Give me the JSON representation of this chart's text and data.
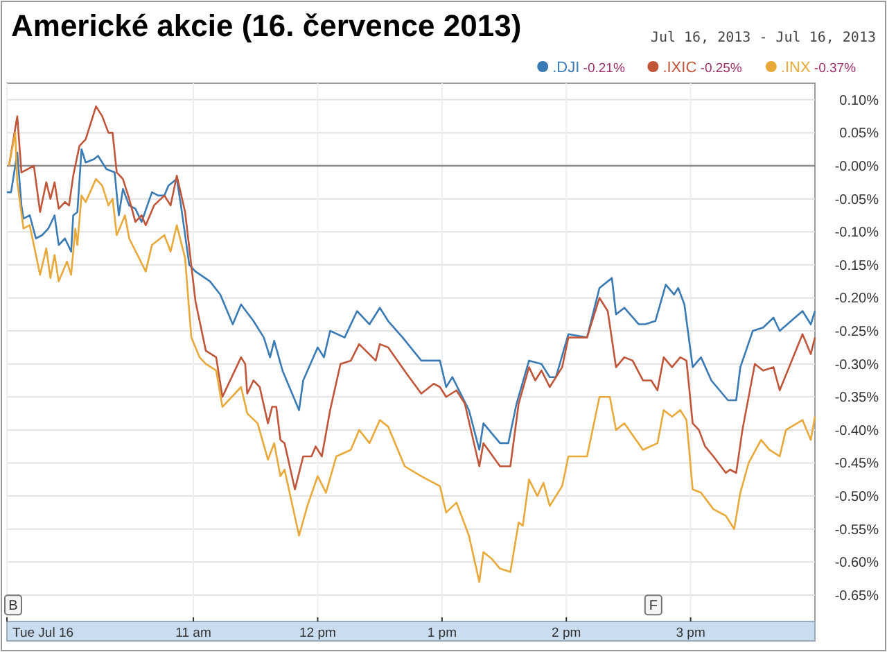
{
  "chart_data": {
    "type": "line",
    "title": "Americké akcie (16. července 2013)",
    "subtitle": "Jul 16, 2013  -  Jul 16, 2013",
    "xlim": [
      "2013-07-16T09:30",
      "2013-07-16T16:00"
    ],
    "xticks": [
      {
        "value": "2013-07-16T09:30",
        "label": "Tue Jul 16"
      },
      {
        "value": "2013-07-16T11:00",
        "label": "11 am"
      },
      {
        "value": "2013-07-16T12:00",
        "label": "12 pm"
      },
      {
        "value": "2013-07-16T13:00",
        "label": "1 pm"
      },
      {
        "value": "2013-07-16T14:00",
        "label": "2 pm"
      },
      {
        "value": "2013-07-16T15:00",
        "label": "3 pm"
      }
    ],
    "ylim": [
      -0.69,
      0.125
    ],
    "yticks": [
      {
        "value": 0.1,
        "label": "0.10%"
      },
      {
        "value": 0.05,
        "label": "0.05%"
      },
      {
        "value": 0,
        "label": "-0.00%"
      },
      {
        "value": -0.05,
        "label": "-0.05%"
      },
      {
        "value": -0.1,
        "label": "-0.10%"
      },
      {
        "value": -0.15,
        "label": "-0.15%"
      },
      {
        "value": -0.2,
        "label": "-0.20%"
      },
      {
        "value": -0.25,
        "label": "-0.25%"
      },
      {
        "value": -0.3,
        "label": "-0.30%"
      },
      {
        "value": -0.35,
        "label": "-0.35%"
      },
      {
        "value": -0.4,
        "label": "-0.40%"
      },
      {
        "value": -0.45,
        "label": "-0.45%"
      },
      {
        "value": -0.5,
        "label": "-0.50%"
      },
      {
        "value": -0.55,
        "label": "-0.55%"
      },
      {
        "value": -0.6,
        "label": "-0.60%"
      },
      {
        "value": -0.65,
        "label": "-0.65%"
      }
    ],
    "grid": true,
    "legend": "top right",
    "marker": "none",
    "line_style": "solid",
    "ref_lines": [
      {
        "axis": "y",
        "value": 0,
        "color": "#888888"
      }
    ],
    "annotations": [
      {
        "text": "B",
        "x": "2013-07-16T09:33",
        "y": -0.665
      },
      {
        "text": "F",
        "x": "2013-07-16T14:42",
        "y": -0.665
      }
    ],
    "series": [
      {
        "name": ".DJI -0.21%",
        "color": "#3a7ab5",
        "x": [
          "2013-07-16T09:30",
          "2013-07-16T09:32",
          "2013-07-16T09:35",
          "2013-07-16T09:37",
          "2013-07-16T09:38",
          "2013-07-16T09:41",
          "2013-07-16T09:44",
          "2013-07-16T09:47",
          "2013-07-16T09:50",
          "2013-07-16T09:53",
          "2013-07-16T09:55",
          "2013-07-16T09:58",
          "2013-07-16T10:01",
          "2013-07-16T10:02",
          "2013-07-16T10:04",
          "2013-07-16T10:06",
          "2013-07-16T10:08",
          "2013-07-16T10:12",
          "2013-07-16T10:14",
          "2013-07-16T10:18",
          "2013-07-16T10:22",
          "2013-07-16T10:24",
          "2013-07-16T10:26",
          "2013-07-16T10:29",
          "2013-07-16T10:32",
          "2013-07-16T10:35",
          "2013-07-16T10:40",
          "2013-07-16T10:43",
          "2013-07-16T10:46",
          "2013-07-16T10:48",
          "2013-07-16T10:52",
          "2013-07-16T10:54",
          "2013-07-16T10:58",
          "2013-07-16T11:01",
          "2013-07-16T11:08",
          "2013-07-16T11:13",
          "2013-07-16T11:19",
          "2013-07-16T11:23",
          "2013-07-16T11:29",
          "2013-07-16T11:34",
          "2013-07-16T11:37",
          "2013-07-16T11:39",
          "2013-07-16T11:43",
          "2013-07-16T11:51",
          "2013-07-16T11:53",
          "2013-07-16T12:00",
          "2013-07-16T12:03",
          "2013-07-16T12:06",
          "2013-07-16T12:13",
          "2013-07-16T12:19",
          "2013-07-16T12:25",
          "2013-07-16T12:30",
          "2013-07-16T12:34",
          "2013-07-16T12:41",
          "2013-07-16T12:50",
          "2013-07-16T12:59",
          "2013-07-16T13:02",
          "2013-07-16T13:05",
          "2013-07-16T13:13",
          "2013-07-16T13:18",
          "2013-07-16T13:20",
          "2013-07-16T13:28",
          "2013-07-16T13:32",
          "2013-07-16T13:36",
          "2013-07-16T13:42",
          "2013-07-16T13:48",
          "2013-07-16T13:52",
          "2013-07-16T13:55",
          "2013-07-16T14:01",
          "2013-07-16T14:10",
          "2013-07-16T14:16",
          "2013-07-16T14:22",
          "2013-07-16T14:24",
          "2013-07-16T14:28",
          "2013-07-16T14:35",
          "2013-07-16T14:38",
          "2013-07-16T14:43",
          "2013-07-16T14:48",
          "2013-07-16T14:52",
          "2013-07-16T14:54",
          "2013-07-16T14:57",
          "2013-07-16T15:01",
          "2013-07-16T15:05",
          "2013-07-16T15:10",
          "2013-07-16T15:18",
          "2013-07-16T15:22",
          "2013-07-16T15:24",
          "2013-07-16T15:30",
          "2013-07-16T15:35",
          "2013-07-16T15:40",
          "2013-07-16T15:43",
          "2013-07-16T15:54",
          "2013-07-16T15:58",
          "2013-07-16T16:00"
        ],
        "values": [
          -0.04,
          -0.04,
          0.02,
          -0.06,
          -0.08,
          -0.075,
          -0.11,
          -0.105,
          -0.095,
          -0.075,
          -0.12,
          -0.11,
          -0.13,
          -0.075,
          -0.07,
          0.025,
          0.005,
          0.01,
          0.015,
          -0.005,
          -0.01,
          -0.075,
          -0.035,
          -0.06,
          -0.065,
          -0.085,
          -0.04,
          -0.045,
          -0.045,
          -0.03,
          -0.02,
          -0.06,
          -0.15,
          -0.16,
          -0.175,
          -0.195,
          -0.24,
          -0.21,
          -0.235,
          -0.26,
          -0.29,
          -0.265,
          -0.31,
          -0.37,
          -0.325,
          -0.275,
          -0.29,
          -0.25,
          -0.26,
          -0.22,
          -0.24,
          -0.215,
          -0.235,
          -0.26,
          -0.295,
          -0.295,
          -0.335,
          -0.32,
          -0.37,
          -0.43,
          -0.39,
          -0.42,
          -0.42,
          -0.36,
          -0.295,
          -0.3,
          -0.32,
          -0.32,
          -0.255,
          -0.26,
          -0.185,
          -0.17,
          -0.225,
          -0.215,
          -0.24,
          -0.24,
          -0.235,
          -0.18,
          -0.195,
          -0.185,
          -0.21,
          -0.305,
          -0.29,
          -0.325,
          -0.355,
          -0.355,
          -0.305,
          -0.25,
          -0.245,
          -0.23,
          -0.25,
          -0.22,
          -0.24,
          -0.22
        ]
      },
      {
        "name": ".IXIC -0.25%",
        "color": "#c0553a",
        "x": [
          "2013-07-16T09:31",
          "2013-07-16T09:35",
          "2013-07-16T09:37",
          "2013-07-16T09:40",
          "2013-07-16T09:43",
          "2013-07-16T09:46",
          "2013-07-16T09:49",
          "2013-07-16T09:51",
          "2013-07-16T09:53",
          "2013-07-16T09:55",
          "2013-07-16T09:58",
          "2013-07-16T10:00",
          "2013-07-16T10:02",
          "2013-07-16T10:05",
          "2013-07-16T10:08",
          "2013-07-16T10:13",
          "2013-07-16T10:16",
          "2013-07-16T10:19",
          "2013-07-16T10:21",
          "2013-07-16T10:23",
          "2013-07-16T10:26",
          "2013-07-16T10:29",
          "2013-07-16T10:32",
          "2013-07-16T10:35",
          "2013-07-16T10:37",
          "2013-07-16T10:41",
          "2013-07-16T10:46",
          "2013-07-16T10:49",
          "2013-07-16T10:52",
          "2013-07-16T10:56",
          "2013-07-16T11:01",
          "2013-07-16T11:06",
          "2013-07-16T11:11",
          "2013-07-16T11:14",
          "2013-07-16T11:23",
          "2013-07-16T11:25",
          "2013-07-16T11:26",
          "2013-07-16T11:29",
          "2013-07-16T11:32",
          "2013-07-16T11:36",
          "2013-07-16T11:38",
          "2013-07-16T11:40",
          "2013-07-16T11:42",
          "2013-07-16T11:44",
          "2013-07-16T11:49",
          "2013-07-16T11:53",
          "2013-07-16T11:57",
          "2013-07-16T11:59",
          "2013-07-16T12:02",
          "2013-07-16T12:06",
          "2013-07-16T12:11",
          "2013-07-16T12:16",
          "2013-07-16T12:20",
          "2013-07-16T12:28",
          "2013-07-16T12:30",
          "2013-07-16T12:34",
          "2013-07-16T12:43",
          "2013-07-16T12:50",
          "2013-07-16T12:56",
          "2013-07-16T12:59",
          "2013-07-16T13:02",
          "2013-07-16T13:07",
          "2013-07-16T13:11",
          "2013-07-16T13:18",
          "2013-07-16T13:20",
          "2013-07-16T13:28",
          "2013-07-16T13:33",
          "2013-07-16T13:37",
          "2013-07-16T13:42",
          "2013-07-16T13:45",
          "2013-07-16T13:48",
          "2013-07-16T13:52",
          "2013-07-16T13:58",
          "2013-07-16T14:01",
          "2013-07-16T14:10",
          "2013-07-16T14:16",
          "2013-07-16T14:20",
          "2013-07-16T14:24",
          "2013-07-16T14:28",
          "2013-07-16T14:32",
          "2013-07-16T14:37",
          "2013-07-16T14:41",
          "2013-07-16T14:44",
          "2013-07-16T14:47",
          "2013-07-16T14:51",
          "2013-07-16T14:55",
          "2013-07-16T14:58",
          "2013-07-16T15:01",
          "2013-07-16T15:04",
          "2013-07-16T15:07",
          "2013-07-16T15:11",
          "2013-07-16T15:17",
          "2013-07-16T15:19",
          "2013-07-16T15:22",
          "2013-07-16T15:25",
          "2013-07-16T15:31",
          "2013-07-16T15:35",
          "2013-07-16T15:40",
          "2013-07-16T15:43",
          "2013-07-16T15:54",
          "2013-07-16T15:58",
          "2013-07-16T16:00"
        ],
        "values": [
          0.0,
          0.075,
          -0.01,
          -0.005,
          0.0,
          -0.07,
          -0.025,
          -0.05,
          -0.025,
          -0.065,
          -0.055,
          -0.06,
          -0.015,
          0.03,
          0.04,
          0.09,
          0.075,
          0.05,
          0.05,
          -0.01,
          -0.02,
          -0.05,
          -0.085,
          -0.075,
          -0.09,
          -0.06,
          -0.045,
          -0.06,
          -0.015,
          -0.07,
          -0.205,
          -0.28,
          -0.29,
          -0.35,
          -0.29,
          -0.3,
          -0.345,
          -0.325,
          -0.335,
          -0.39,
          -0.365,
          -0.365,
          -0.415,
          -0.42,
          -0.49,
          -0.44,
          -0.44,
          -0.425,
          -0.44,
          -0.37,
          -0.3,
          -0.295,
          -0.27,
          -0.295,
          -0.27,
          -0.275,
          -0.315,
          -0.345,
          -0.33,
          -0.335,
          -0.35,
          -0.34,
          -0.36,
          -0.455,
          -0.42,
          -0.455,
          -0.455,
          -0.36,
          -0.305,
          -0.325,
          -0.31,
          -0.335,
          -0.305,
          -0.26,
          -0.26,
          -0.2,
          -0.22,
          -0.305,
          -0.29,
          -0.295,
          -0.325,
          -0.325,
          -0.34,
          -0.29,
          -0.305,
          -0.29,
          -0.295,
          -0.39,
          -0.4,
          -0.425,
          -0.44,
          -0.465,
          -0.46,
          -0.465,
          -0.4,
          -0.3,
          -0.31,
          -0.305,
          -0.34,
          -0.255,
          -0.285,
          -0.26
        ]
      },
      {
        "name": ".INX -0.37%",
        "color": "#e8a93a",
        "x": [
          "2013-07-16T09:31",
          "2013-07-16T09:34",
          "2013-07-16T09:35",
          "2013-07-16T09:38",
          "2013-07-16T09:41",
          "2013-07-16T09:46",
          "2013-07-16T09:49",
          "2013-07-16T09:51",
          "2013-07-16T09:53",
          "2013-07-16T09:55",
          "2013-07-16T09:59",
          "2013-07-16T10:01",
          "2013-07-16T10:03",
          "2013-07-16T10:04",
          "2013-07-16T10:06",
          "2013-07-16T10:08",
          "2013-07-16T10:13",
          "2013-07-16T10:16",
          "2013-07-16T10:19",
          "2013-07-16T10:21",
          "2013-07-16T10:23",
          "2013-07-16T10:27",
          "2013-07-16T10:29",
          "2013-07-16T10:37",
          "2013-07-16T10:40",
          "2013-07-16T10:46",
          "2013-07-16T10:49",
          "2013-07-16T10:52",
          "2013-07-16T10:56",
          "2013-07-16T10:59",
          "2013-07-16T11:03",
          "2013-07-16T11:06",
          "2013-07-16T11:11",
          "2013-07-16T11:14",
          "2013-07-16T11:23",
          "2013-07-16T11:26",
          "2013-07-16T11:31",
          "2013-07-16T11:36",
          "2013-07-16T11:39",
          "2013-07-16T11:42",
          "2013-07-16T11:44",
          "2013-07-16T11:51",
          "2013-07-16T11:55",
          "2013-07-16T12:00",
          "2013-07-16T12:04",
          "2013-07-16T12:09",
          "2013-07-16T12:16",
          "2013-07-16T12:20",
          "2013-07-16T12:25",
          "2013-07-16T12:30",
          "2013-07-16T12:34",
          "2013-07-16T12:42",
          "2013-07-16T12:50",
          "2013-07-16T12:59",
          "2013-07-16T13:02",
          "2013-07-16T13:07",
          "2013-07-16T13:13",
          "2013-07-16T13:18",
          "2013-07-16T13:20",
          "2013-07-16T13:24",
          "2013-07-16T13:28",
          "2013-07-16T13:33",
          "2013-07-16T13:37",
          "2013-07-16T13:39",
          "2013-07-16T13:42",
          "2013-07-16T13:46",
          "2013-07-16T13:49",
          "2013-07-16T13:52",
          "2013-07-16T13:58",
          "2013-07-16T14:01",
          "2013-07-16T14:10",
          "2013-07-16T14:16",
          "2013-07-16T14:21",
          "2013-07-16T14:24",
          "2013-07-16T14:28",
          "2013-07-16T14:37",
          "2013-07-16T14:44",
          "2013-07-16T14:47",
          "2013-07-16T14:51",
          "2013-07-16T14:55",
          "2013-07-16T14:58",
          "2013-07-16T15:01",
          "2013-07-16T15:05",
          "2013-07-16T15:11",
          "2013-07-16T15:17",
          "2013-07-16T15:21",
          "2013-07-16T15:24",
          "2013-07-16T15:28",
          "2013-07-16T15:34",
          "2013-07-16T15:38",
          "2013-07-16T15:43",
          "2013-07-16T15:46",
          "2013-07-16T15:54",
          "2013-07-16T15:58",
          "2013-07-16T16:00"
        ],
        "values": [
          0.0,
          0.05,
          -0.025,
          -0.095,
          -0.09,
          -0.165,
          -0.125,
          -0.17,
          -0.135,
          -0.175,
          -0.145,
          -0.165,
          -0.095,
          -0.12,
          -0.045,
          -0.055,
          -0.02,
          -0.03,
          -0.06,
          -0.05,
          -0.105,
          -0.075,
          -0.11,
          -0.16,
          -0.12,
          -0.105,
          -0.13,
          -0.09,
          -0.14,
          -0.26,
          -0.29,
          -0.3,
          -0.31,
          -0.365,
          -0.335,
          -0.375,
          -0.39,
          -0.445,
          -0.42,
          -0.47,
          -0.46,
          -0.56,
          -0.515,
          -0.47,
          -0.495,
          -0.44,
          -0.43,
          -0.4,
          -0.42,
          -0.385,
          -0.395,
          -0.455,
          -0.47,
          -0.485,
          -0.525,
          -0.51,
          -0.56,
          -0.63,
          -0.585,
          -0.595,
          -0.61,
          -0.615,
          -0.54,
          -0.545,
          -0.475,
          -0.5,
          -0.48,
          -0.515,
          -0.485,
          -0.44,
          -0.44,
          -0.35,
          -0.35,
          -0.4,
          -0.39,
          -0.43,
          -0.42,
          -0.37,
          -0.38,
          -0.37,
          -0.385,
          -0.49,
          -0.495,
          -0.52,
          -0.53,
          -0.55,
          -0.495,
          -0.45,
          -0.415,
          -0.43,
          -0.44,
          -0.4,
          -0.385,
          -0.415,
          -0.38
        ]
      }
    ]
  }
}
